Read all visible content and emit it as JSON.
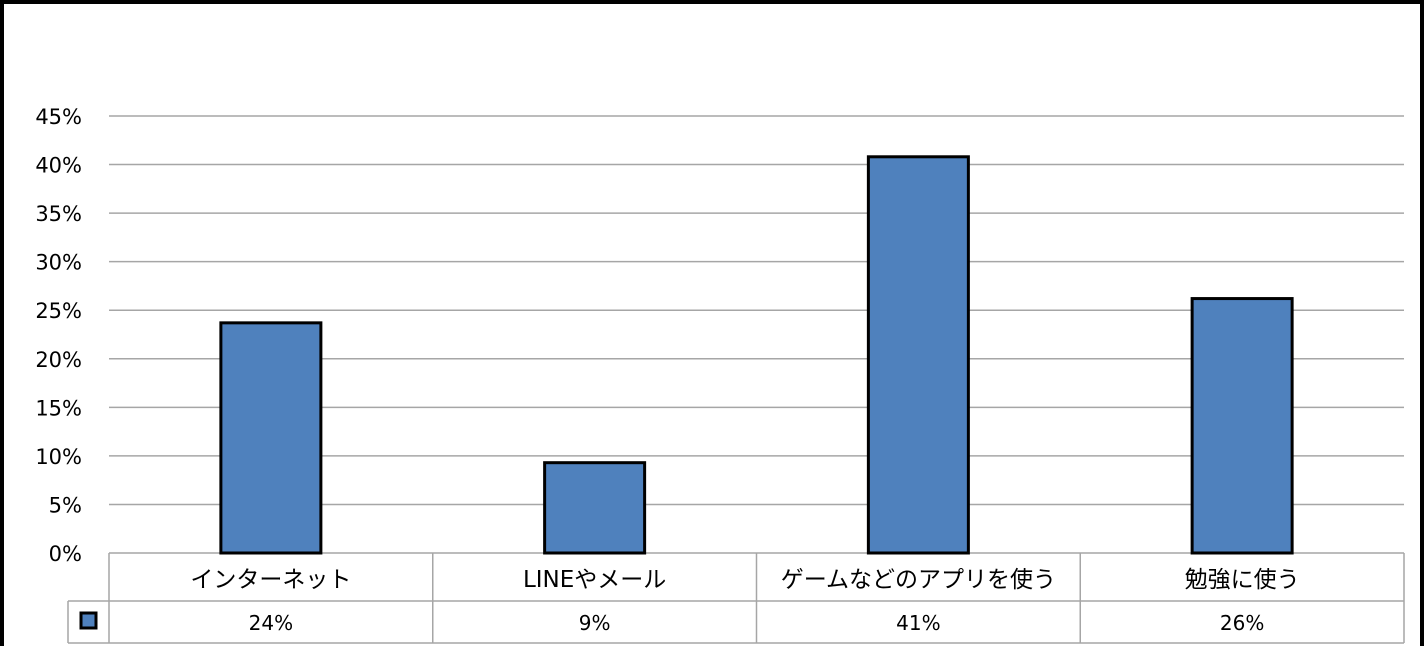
{
  "chart_data": {
    "type": "bar",
    "title": "",
    "xlabel": "",
    "ylabel": "",
    "categories": [
      "インターネット",
      "LINEやメール",
      "ゲームなどのアプリを使う",
      "勉強に使う"
    ],
    "series": [
      {
        "values": [
          23.7,
          9.3,
          40.8,
          26.2
        ],
        "color": "#4f81bd"
      }
    ],
    "data_table_labels": [
      "24%",
      "9%",
      "41%",
      "26%"
    ],
    "ylim": [
      0,
      45
    ],
    "yticks": [
      "0%",
      "5%",
      "10%",
      "15%",
      "20%",
      "25%",
      "30%",
      "35%",
      "40%",
      "45%"
    ],
    "ytick_values": [
      0,
      5,
      10,
      15,
      20,
      25,
      30,
      35,
      40,
      45
    ],
    "grid": true,
    "legend": "data-table",
    "colors": {
      "bar": "#4f81bd",
      "bar_border": "#000000",
      "grid": "#a6a6a6",
      "table_border": "#a6a6a6"
    }
  }
}
